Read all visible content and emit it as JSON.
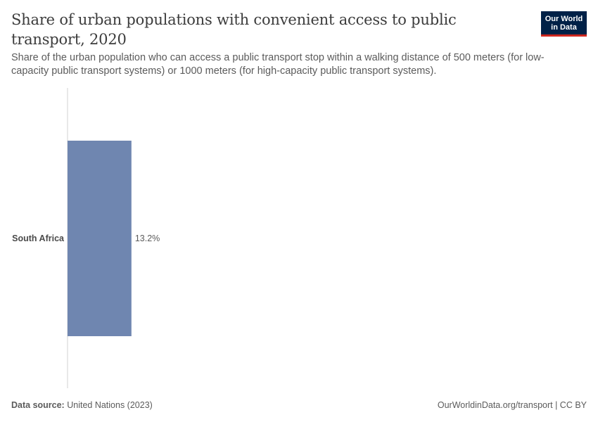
{
  "header": {
    "title": "Share of urban populations with convenient access to public transport, 2020",
    "subtitle": "Share of the urban population who can access a public transport stop within a walking distance of 500 meters (for low-capacity public transport systems) or 1000 meters (for high-capacity public transport systems)."
  },
  "logo": {
    "line1": "Our World",
    "line2": "in Data"
  },
  "footer": {
    "source_label": "Data source:",
    "source_value": "United Nations (2023)",
    "right": "OurWorldinData.org/transport | CC BY"
  },
  "colors": {
    "bar": "#6f86b0",
    "axis": "#d0d0d0",
    "logo_bg": "#002147",
    "logo_accent": "#ce261e"
  },
  "chart_data": {
    "type": "bar",
    "orientation": "horizontal",
    "categories": [
      "South Africa"
    ],
    "values": [
      13.2
    ],
    "value_labels": [
      "13.2%"
    ],
    "xlim": [
      0,
      100
    ],
    "grid": false
  }
}
